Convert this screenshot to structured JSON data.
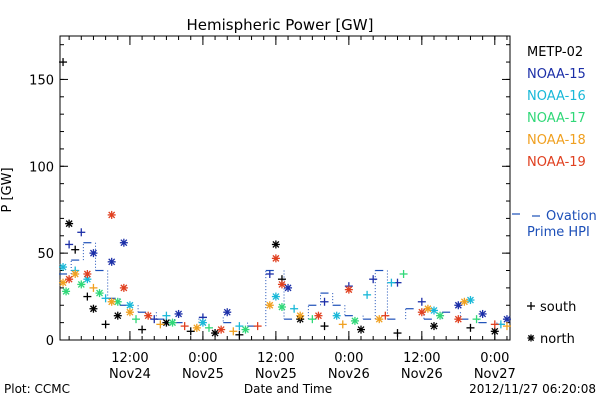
{
  "chart_data": {
    "type": "scatter",
    "title": "Hemispheric Power [GW]",
    "ylabel": "P [GW]",
    "xlabel": "Date and Time",
    "ylim": [
      0,
      175
    ],
    "xlim": [
      "2012-11-24 00:30",
      "2012-11-27 02:30"
    ],
    "yticks": [
      0,
      50,
      100,
      150
    ],
    "x_ticks": [
      {
        "time": "2012-11-24 12:00",
        "line1": "12:00",
        "line2": "Nov24"
      },
      {
        "time": "2012-11-25 00:00",
        "line1": "0:00",
        "line2": "Nov25"
      },
      {
        "time": "2012-11-25 12:00",
        "line1": "12:00",
        "line2": "Nov25"
      },
      {
        "time": "2012-11-26 00:00",
        "line1": "0:00",
        "line2": "Nov26"
      },
      {
        "time": "2012-11-26 12:00",
        "line1": "12:00",
        "line2": "Nov26"
      },
      {
        "time": "2012-11-27 00:00",
        "line1": "0:00",
        "line2": "Nov27"
      }
    ],
    "grid": false,
    "legend_position": "right",
    "series": [
      {
        "name": "METP-02",
        "color": "#000000",
        "points": [
          [
            "2012-11-24 01:00",
            160,
            "s"
          ],
          [
            "2012-11-24 02:00",
            67,
            "n"
          ],
          [
            "2012-11-24 03:00",
            52,
            "s"
          ],
          [
            "2012-11-24 05:00",
            25,
            "s"
          ],
          [
            "2012-11-24 06:00",
            18,
            "n"
          ],
          [
            "2012-11-24 08:00",
            9,
            "s"
          ],
          [
            "2012-11-24 10:00",
            14,
            "n"
          ],
          [
            "2012-11-24 14:00",
            6,
            "s"
          ],
          [
            "2012-11-24 18:00",
            10,
            "n"
          ],
          [
            "2012-11-24 22:00",
            5,
            "s"
          ],
          [
            "2012-11-25 02:00",
            4,
            "n"
          ],
          [
            "2012-11-25 06:00",
            3,
            "s"
          ],
          [
            "2012-11-25 12:00",
            55,
            "n"
          ],
          [
            "2012-11-25 13:00",
            35,
            "s"
          ],
          [
            "2012-11-25 16:00",
            12,
            "n"
          ],
          [
            "2012-11-25 20:00",
            8,
            "s"
          ],
          [
            "2012-11-26 02:00",
            6,
            "n"
          ],
          [
            "2012-11-26 08:00",
            4,
            "s"
          ],
          [
            "2012-11-26 14:00",
            8,
            "n"
          ],
          [
            "2012-11-26 20:00",
            7,
            "s"
          ],
          [
            "2012-11-27 00:00",
            5,
            "n"
          ]
        ]
      },
      {
        "name": "NOAA-15",
        "color": "#1c2fa8",
        "points": [
          [
            "2012-11-24 02:00",
            55,
            "s"
          ],
          [
            "2012-11-24 04:00",
            62,
            "s"
          ],
          [
            "2012-11-24 06:00",
            50,
            "n"
          ],
          [
            "2012-11-24 09:00",
            45,
            "n"
          ],
          [
            "2012-11-24 11:00",
            56,
            "n"
          ],
          [
            "2012-11-24 16:00",
            12,
            "s"
          ],
          [
            "2012-11-24 20:00",
            15,
            "n"
          ],
          [
            "2012-11-25 00:00",
            13,
            "s"
          ],
          [
            "2012-11-25 04:00",
            16,
            "n"
          ],
          [
            "2012-11-25 11:00",
            38,
            "s"
          ],
          [
            "2012-11-25 14:00",
            30,
            "n"
          ],
          [
            "2012-11-25 20:00",
            22,
            "s"
          ],
          [
            "2012-11-26 00:00",
            31,
            "s"
          ],
          [
            "2012-11-26 04:00",
            35,
            "s"
          ],
          [
            "2012-11-26 08:00",
            33,
            "s"
          ],
          [
            "2012-11-26 12:00",
            22,
            "s"
          ],
          [
            "2012-11-26 18:00",
            20,
            "n"
          ],
          [
            "2012-11-26 22:00",
            15,
            "n"
          ],
          [
            "2012-11-27 02:00",
            12,
            "n"
          ]
        ]
      },
      {
        "name": "NOAA-16",
        "color": "#19b8d8",
        "points": [
          [
            "2012-11-24 01:00",
            42,
            "n"
          ],
          [
            "2012-11-24 03:00",
            40,
            "s"
          ],
          [
            "2012-11-24 05:00",
            35,
            "n"
          ],
          [
            "2012-11-24 08:00",
            24,
            "s"
          ],
          [
            "2012-11-24 12:00",
            20,
            "n"
          ],
          [
            "2012-11-24 18:00",
            14,
            "s"
          ],
          [
            "2012-11-25 00:00",
            10,
            "n"
          ],
          [
            "2012-11-25 06:00",
            8,
            "s"
          ],
          [
            "2012-11-25 12:00",
            25,
            "n"
          ],
          [
            "2012-11-25 15:00",
            18,
            "s"
          ],
          [
            "2012-11-25 22:00",
            14,
            "n"
          ],
          [
            "2012-11-26 03:00",
            26,
            "s"
          ],
          [
            "2012-11-26 07:00",
            33,
            "s"
          ],
          [
            "2012-11-26 14:00",
            17,
            "n"
          ],
          [
            "2012-11-26 20:00",
            23,
            "n"
          ],
          [
            "2012-11-27 01:00",
            9,
            "s"
          ]
        ]
      },
      {
        "name": "NOAA-17",
        "color": "#30d878",
        "points": [
          [
            "2012-11-24 01:30",
            28,
            "n"
          ],
          [
            "2012-11-24 04:00",
            32,
            "n"
          ],
          [
            "2012-11-24 07:00",
            27,
            "n"
          ],
          [
            "2012-11-24 10:00",
            22,
            "n"
          ],
          [
            "2012-11-24 13:00",
            12,
            "s"
          ],
          [
            "2012-11-24 19:00",
            10,
            "n"
          ],
          [
            "2012-11-25 01:00",
            7,
            "s"
          ],
          [
            "2012-11-25 07:00",
            6,
            "n"
          ],
          [
            "2012-11-25 13:00",
            19,
            "n"
          ],
          [
            "2012-11-25 18:00",
            12,
            "s"
          ],
          [
            "2012-11-26 01:00",
            11,
            "n"
          ],
          [
            "2012-11-26 09:00",
            38,
            "s"
          ],
          [
            "2012-11-26 15:00",
            14,
            "n"
          ],
          [
            "2012-11-26 21:00",
            12,
            "s"
          ]
        ]
      },
      {
        "name": "NOAA-18",
        "color": "#f0a020",
        "points": [
          [
            "2012-11-24 01:00",
            33,
            "n"
          ],
          [
            "2012-11-24 03:00",
            38,
            "n"
          ],
          [
            "2012-11-24 06:00",
            30,
            "s"
          ],
          [
            "2012-11-24 09:00",
            22,
            "n"
          ],
          [
            "2012-11-24 12:00",
            16,
            "n"
          ],
          [
            "2012-11-24 17:00",
            9,
            "s"
          ],
          [
            "2012-11-24 23:00",
            7,
            "n"
          ],
          [
            "2012-11-25 05:00",
            5,
            "s"
          ],
          [
            "2012-11-25 11:00",
            20,
            "n"
          ],
          [
            "2012-11-25 16:00",
            14,
            "n"
          ],
          [
            "2012-11-25 23:00",
            9,
            "s"
          ],
          [
            "2012-11-26 05:00",
            12,
            "n"
          ],
          [
            "2012-11-26 13:00",
            18,
            "n"
          ],
          [
            "2012-11-26 19:00",
            22,
            "n"
          ],
          [
            "2012-11-27 02:00",
            8,
            "s"
          ]
        ]
      },
      {
        "name": "NOAA-19",
        "color": "#e04020",
        "points": [
          [
            "2012-11-24 02:00",
            35,
            "n"
          ],
          [
            "2012-11-24 05:00",
            38,
            "n"
          ],
          [
            "2012-11-24 09:00",
            72,
            "n"
          ],
          [
            "2012-11-24 11:00",
            30,
            "n"
          ],
          [
            "2012-11-24 15:00",
            14,
            "n"
          ],
          [
            "2012-11-24 21:00",
            8,
            "s"
          ],
          [
            "2012-11-25 03:00",
            6,
            "n"
          ],
          [
            "2012-11-25 09:00",
            8,
            "s"
          ],
          [
            "2012-11-25 12:00",
            47,
            "n"
          ],
          [
            "2012-11-25 13:00",
            32,
            "n"
          ],
          [
            "2012-11-25 19:00",
            14,
            "n"
          ],
          [
            "2012-11-26 00:00",
            29,
            "n"
          ],
          [
            "2012-11-26 06:00",
            14,
            "s"
          ],
          [
            "2012-11-26 12:00",
            16,
            "n"
          ],
          [
            "2012-11-26 18:00",
            12,
            "n"
          ],
          [
            "2012-11-27 00:00",
            9,
            "s"
          ]
        ]
      }
    ],
    "ovation": {
      "name": "Ovation Prime HPI",
      "name_line1": "Ovation",
      "name_line2": "Prime HPI",
      "color": "#1c4fb8",
      "points": [
        [
          "2012-11-24 01:00",
          38
        ],
        [
          "2012-11-24 03:00",
          46
        ],
        [
          "2012-11-24 05:00",
          56
        ],
        [
          "2012-11-24 07:00",
          40
        ],
        [
          "2012-11-24 09:00",
          24
        ],
        [
          "2012-11-24 11:00",
          20
        ],
        [
          "2012-11-24 14:00",
          16
        ],
        [
          "2012-11-24 17:00",
          12
        ],
        [
          "2012-11-24 20:00",
          10
        ],
        [
          "2012-11-25 00:00",
          13
        ],
        [
          "2012-11-25 04:00",
          10
        ],
        [
          "2012-11-25 08:00",
          8
        ],
        [
          "2012-11-25 11:00",
          40
        ],
        [
          "2012-11-25 14:00",
          12
        ],
        [
          "2012-11-25 18:00",
          20
        ],
        [
          "2012-11-25 20:00",
          27
        ],
        [
          "2012-11-25 22:00",
          20
        ],
        [
          "2012-11-26 00:00",
          14
        ],
        [
          "2012-11-26 03:00",
          12
        ],
        [
          "2012-11-26 05:00",
          40
        ],
        [
          "2012-11-26 07:00",
          12
        ],
        [
          "2012-11-26 10:00",
          18
        ],
        [
          "2012-11-26 13:00",
          12
        ],
        [
          "2012-11-26 16:00",
          16
        ],
        [
          "2012-11-26 19:00",
          12
        ],
        [
          "2012-11-26 22:00",
          10
        ],
        [
          "2012-11-27 01:00",
          9
        ]
      ]
    },
    "symbol_legend": {
      "south": "south",
      "north": "north"
    }
  },
  "footer": {
    "left": "Plot: CCMC",
    "right": "2012/11/27 06:20:08"
  }
}
